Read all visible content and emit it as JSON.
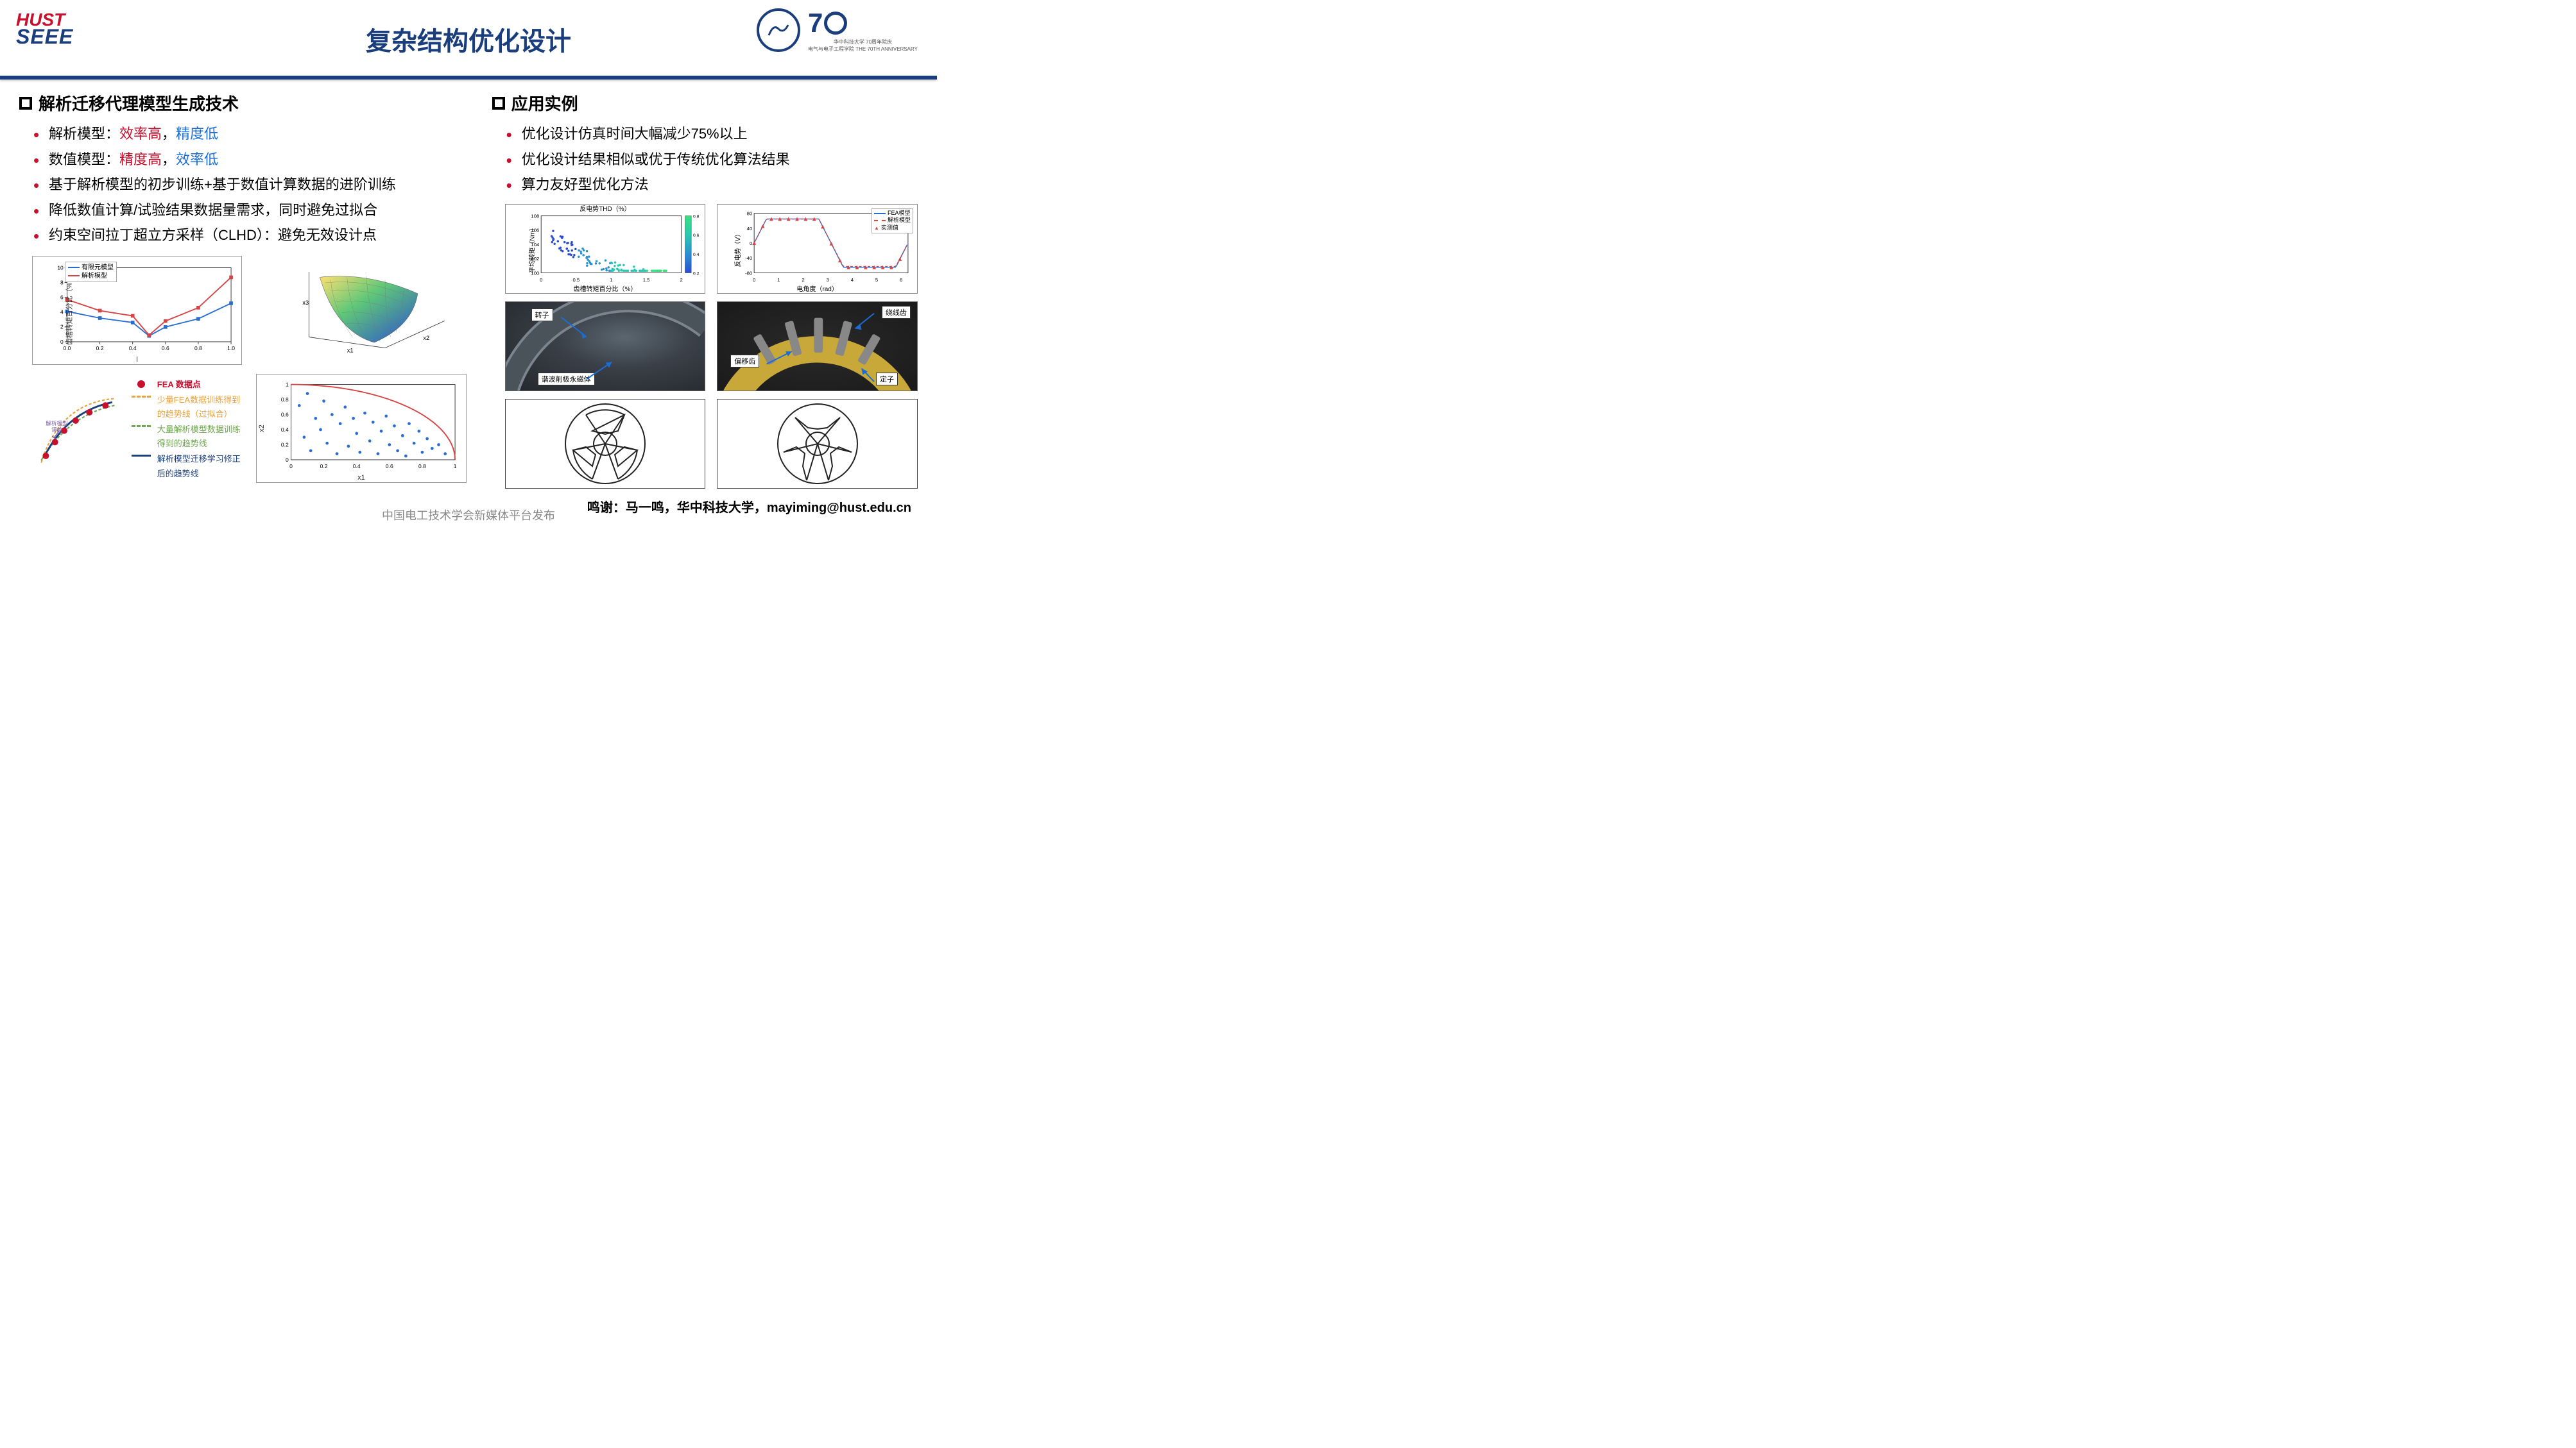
{
  "header": {
    "logo_top": "HUST",
    "logo_bottom": "SEEE",
    "title": "复杂结构优化设计",
    "anniv": "70",
    "anniv_sub1": "华中科技大学 70周年院庆",
    "anniv_sub2": "电气与电子工程学院 THE 70TH ANNIVERSARY"
  },
  "left": {
    "heading": "解析迁移代理模型生成技术",
    "b1_pre": "解析模型：",
    "b1_red": "效率高",
    "b1_mid": "，",
    "b1_blue": "精度低",
    "b2_pre": "数值模型：",
    "b2_red": "精度高",
    "b2_mid": "，",
    "b2_blue": "效率低",
    "b3": "基于解析模型的初步训练+基于数值计算数据的进阶训练",
    "b4": "降低数值计算/试验结果数据量需求，同时避免过拟合",
    "b5": "约束空间拉丁超立方采样（CLHD）：避免无效设计点",
    "chart1": {
      "ylab": "齿槽转矩百分比（%）",
      "xlab": "l",
      "legend1": "有限元模型",
      "legend1_color": "#2a6dd0",
      "legend2": "解析模型",
      "legend2_color": "#d64545",
      "xticks": [
        "0.0",
        "0.2",
        "0.4",
        "0.6",
        "0.8",
        "1.0"
      ],
      "yticks": [
        "0",
        "2",
        "4",
        "6",
        "8",
        "10"
      ],
      "series_fe": [
        [
          0,
          4.1
        ],
        [
          0.2,
          3.2
        ],
        [
          0.4,
          2.6
        ],
        [
          0.5,
          0.8
        ],
        [
          0.6,
          2.0
        ],
        [
          0.8,
          3.1
        ],
        [
          1.0,
          5.2
        ]
      ],
      "series_ana": [
        [
          0,
          5.7
        ],
        [
          0.2,
          4.2
        ],
        [
          0.4,
          3.5
        ],
        [
          0.5,
          0.9
        ],
        [
          0.6,
          2.8
        ],
        [
          0.8,
          4.6
        ],
        [
          1.0,
          8.7
        ]
      ],
      "marker": "square"
    },
    "surface": {
      "x": "x1",
      "y": "x2",
      "z": "x3"
    },
    "schematic": {
      "label": "解析模型\n误差",
      "label_color": "#7a5fa3"
    },
    "keylegend": {
      "r1": "FEA 数据点",
      "r1_style": "dot-red",
      "r1_bold": true,
      "r2": "少量FEA数据训练得到的趋势线（过拟合）",
      "r2_style": "dash-orange",
      "r2_color": "#e8a23c",
      "r3": "大量解析模型数据训练得到的趋势线",
      "r3_style": "dash-green",
      "r3_color": "#6ea84f",
      "r4": "解析模型迁移学习修正后的趋势线",
      "r4_style": "solid-blue",
      "r4_color": "#1a3d7c"
    },
    "scatter": {
      "xlab": "x1",
      "ylab": "x2",
      "ticks": [
        "0",
        "0.2",
        "0.4",
        "0.6",
        "0.8",
        "1"
      ],
      "curve_color": "#d64545",
      "point_color": "#2a6dd0",
      "points": [
        [
          0.05,
          0.72
        ],
        [
          0.08,
          0.3
        ],
        [
          0.1,
          0.88
        ],
        [
          0.12,
          0.12
        ],
        [
          0.15,
          0.55
        ],
        [
          0.18,
          0.4
        ],
        [
          0.2,
          0.78
        ],
        [
          0.22,
          0.22
        ],
        [
          0.25,
          0.6
        ],
        [
          0.28,
          0.08
        ],
        [
          0.3,
          0.48
        ],
        [
          0.33,
          0.7
        ],
        [
          0.35,
          0.18
        ],
        [
          0.38,
          0.55
        ],
        [
          0.4,
          0.35
        ],
        [
          0.42,
          0.1
        ],
        [
          0.45,
          0.62
        ],
        [
          0.48,
          0.25
        ],
        [
          0.5,
          0.5
        ],
        [
          0.53,
          0.08
        ],
        [
          0.55,
          0.38
        ],
        [
          0.58,
          0.58
        ],
        [
          0.6,
          0.2
        ],
        [
          0.63,
          0.45
        ],
        [
          0.65,
          0.12
        ],
        [
          0.68,
          0.32
        ],
        [
          0.7,
          0.05
        ],
        [
          0.72,
          0.48
        ],
        [
          0.75,
          0.22
        ],
        [
          0.78,
          0.38
        ],
        [
          0.8,
          0.1
        ],
        [
          0.83,
          0.28
        ],
        [
          0.86,
          0.15
        ],
        [
          0.9,
          0.2
        ],
        [
          0.94,
          0.08
        ]
      ]
    }
  },
  "right": {
    "heading": "应用实例",
    "b1": "优化设计仿真时间大幅减少75%以上",
    "b2": "优化设计结果相似或优于传统优化算法结果",
    "b3": "算力友好型优化方法",
    "scatter_thd": {
      "title": "反电势THD（%）",
      "ylab": "平均转矩（Nm）",
      "xlab": "齿槽转矩百分比（%）",
      "xticks": [
        "0",
        "0.5",
        "1",
        "1.5",
        "2"
      ],
      "yticks": [
        "100",
        "102",
        "104",
        "106",
        "108"
      ],
      "colorbar": [
        "0.2",
        "0.4",
        "0.6",
        "0.8"
      ],
      "cb_colors": [
        "#2a4dd0",
        "#2a90d0",
        "#2ac8b0",
        "#3ae080"
      ]
    },
    "wave": {
      "ylab": "反电势（V）",
      "xlab": "电角度（rad）",
      "xticks": [
        "0",
        "1",
        "2",
        "3",
        "4",
        "5",
        "6"
      ],
      "yticks": [
        "-80",
        "-40",
        "0",
        "40",
        "80"
      ],
      "leg1": "FEA模型",
      "leg1_color": "#2a6dd0",
      "leg2": "解析模型",
      "leg2_color": "#d64545",
      "leg3": "实测值",
      "leg3_color": "#d64545"
    },
    "photo1": {
      "c1": "转子",
      "c2": "谐波削极永磁体"
    },
    "photo2": {
      "c1": "绕线齿",
      "c2": "偏移齿",
      "c3": "定子"
    }
  },
  "credit": "鸣谢：马一鸣，华中科技大学，mayiming@hust.edu.cn",
  "watermark": "中国电工技术学会新媒体平台发布"
}
